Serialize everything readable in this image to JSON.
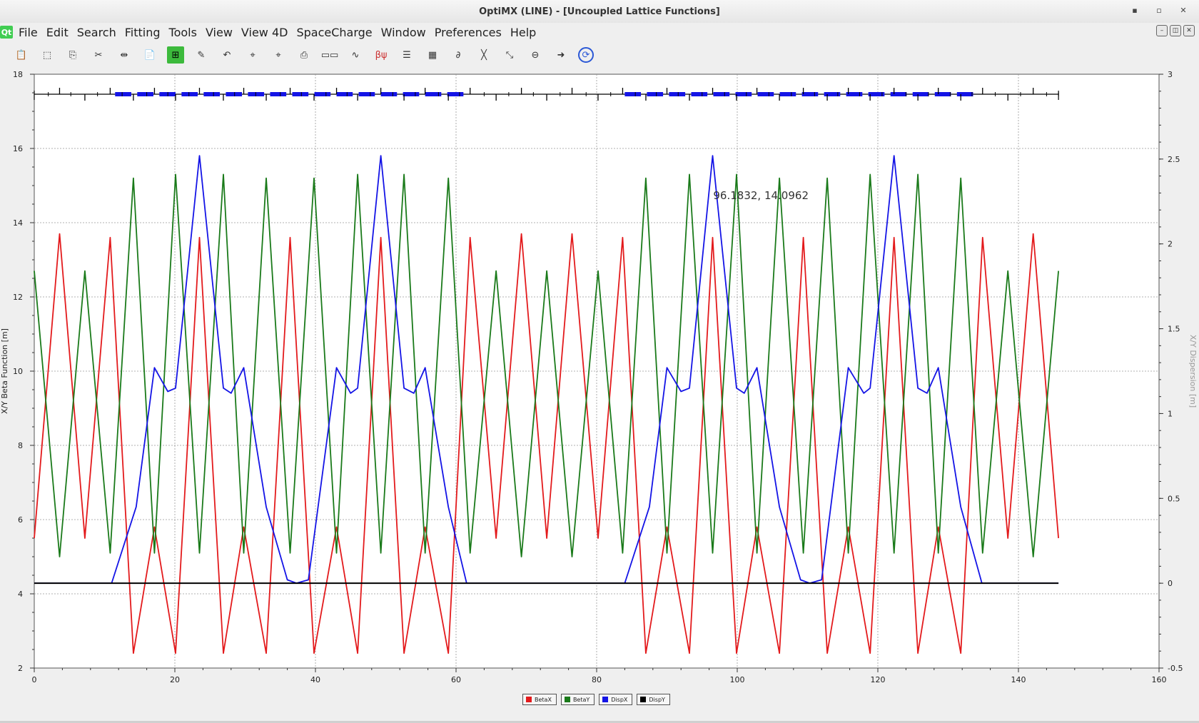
{
  "window": {
    "title": "OptiMX (LINE) - [Uncoupled Lattice Functions]",
    "min_label": "▪",
    "max_label": "▫",
    "close_label": "✕"
  },
  "menubar": {
    "logo": "Qt",
    "items": [
      "File",
      "Edit",
      "Search",
      "Fitting",
      "Tools",
      "View",
      "View 4D",
      "SpaceCharge",
      "Window",
      "Preferences",
      "Help"
    ]
  },
  "toolbar": {
    "buttons": [
      {
        "name": "open-lattice-icon",
        "glyph": "📋"
      },
      {
        "name": "selection-icon",
        "glyph": "⬚"
      },
      {
        "name": "copy-icon",
        "glyph": "⎘"
      },
      {
        "name": "cut-icon",
        "glyph": "✂"
      },
      {
        "name": "align-icon",
        "glyph": "⇹"
      },
      {
        "name": "paste-icon",
        "glyph": "📄"
      },
      {
        "name": "fit-icon",
        "glyph": "⊞",
        "style": "green"
      },
      {
        "name": "tracking-icon",
        "glyph": "✎"
      },
      {
        "name": "undo-icon",
        "glyph": "↶"
      },
      {
        "name": "cursor-icon",
        "glyph": "⌖"
      },
      {
        "name": "cursor-dot-icon",
        "glyph": "⌖"
      },
      {
        "name": "print-icon",
        "glyph": "⎙"
      },
      {
        "name": "lattice-view-icon",
        "glyph": "▭▭"
      },
      {
        "name": "beta-plot-icon",
        "glyph": "∿"
      },
      {
        "name": "beta-phase-icon",
        "glyph": "βψ",
        "style": "red"
      },
      {
        "name": "table-icon",
        "glyph": "☰"
      },
      {
        "name": "grid-icon",
        "glyph": "▦"
      },
      {
        "name": "derivative-icon",
        "glyph": "∂"
      },
      {
        "name": "ellipse-icon",
        "glyph": "╳"
      },
      {
        "name": "zoom-icon",
        "glyph": "⤡"
      },
      {
        "name": "stop-icon",
        "glyph": "⊖"
      },
      {
        "name": "forward-icon",
        "glyph": "➜"
      },
      {
        "name": "refresh-icon",
        "glyph": "⟳",
        "style": "blue-circle"
      }
    ]
  },
  "cursor_readout": "96.1832, 14.0962",
  "legend": [
    {
      "label": "BetaX",
      "color": "#e31a1c"
    },
    {
      "label": "BetaY",
      "color": "#1a7a1a"
    },
    {
      "label": "DispX",
      "color": "#1414e6"
    },
    {
      "label": "DispY",
      "color": "#000000"
    }
  ],
  "chart_data": {
    "type": "line",
    "title": "",
    "xlabel": "",
    "ylabel": "X/Y Beta Function [m]",
    "y2label": "X/Y Dispersion [m]",
    "xlim": [
      0,
      160
    ],
    "ylim": [
      2,
      18
    ],
    "y2lim": [
      -0.5,
      3
    ],
    "xticks": [
      "0",
      "20",
      "40",
      "60",
      "80",
      "100",
      "120",
      "140",
      "160"
    ],
    "yticks": [
      "2",
      "4",
      "6",
      "8",
      "10",
      "12",
      "14",
      "16",
      "18"
    ],
    "y2ticks": [
      "-0.5",
      "0",
      "0.5",
      "1",
      "1.5",
      "2",
      "2.5",
      "3"
    ],
    "grid": true,
    "legend_position": "bottom",
    "lattice_length": 145.7,
    "series": [
      {
        "name": "BetaX",
        "axis": "left",
        "x": [
          0,
          3.6,
          7.2,
          10.8,
          14.1,
          17.1,
          20.1,
          23.5,
          26.9,
          29.8,
          33.0,
          36.4,
          39.8,
          43.0,
          46.0,
          49.3,
          52.6,
          55.6,
          58.9,
          62.0,
          65.7,
          69.3,
          72.9,
          76.5,
          80.2,
          83.7,
          87.0,
          90.0,
          93.2,
          96.5,
          99.9,
          102.8,
          106.0,
          109.4,
          112.8,
          115.8,
          118.9,
          122.3,
          125.7,
          128.6,
          131.8,
          134.9,
          138.5,
          142.1,
          145.7
        ],
        "y": [
          5.5,
          13.7,
          5.5,
          13.6,
          2.4,
          5.8,
          2.4,
          13.6,
          2.4,
          5.8,
          2.4,
          13.6,
          2.4,
          5.8,
          2.4,
          13.6,
          2.4,
          5.8,
          2.4,
          13.6,
          5.5,
          13.7,
          5.5,
          13.7,
          5.5,
          13.6,
          2.4,
          5.8,
          2.4,
          13.6,
          2.4,
          5.8,
          2.4,
          13.6,
          2.4,
          5.8,
          2.4,
          13.6,
          2.4,
          5.8,
          2.4,
          13.6,
          5.5,
          13.7,
          5.5
        ]
      },
      {
        "name": "BetaY",
        "axis": "left",
        "x": [
          0,
          3.6,
          7.2,
          10.8,
          14.1,
          17.1,
          20.1,
          23.5,
          26.9,
          29.8,
          33.0,
          36.4,
          39.8,
          43.0,
          46.0,
          49.3,
          52.6,
          55.6,
          58.9,
          62.0,
          65.7,
          69.3,
          72.9,
          76.5,
          80.2,
          83.7,
          87.0,
          90.0,
          93.2,
          96.5,
          99.9,
          102.8,
          106.0,
          109.4,
          112.8,
          115.8,
          118.9,
          122.3,
          125.7,
          128.6,
          131.8,
          134.9,
          138.5,
          142.1,
          145.7
        ],
        "y": [
          12.7,
          5.0,
          12.7,
          5.1,
          15.2,
          5.1,
          15.3,
          5.1,
          15.3,
          5.1,
          15.2,
          5.1,
          15.2,
          5.1,
          15.3,
          5.1,
          15.3,
          5.1,
          15.2,
          5.1,
          12.7,
          5.0,
          12.7,
          5.0,
          12.7,
          5.1,
          15.2,
          5.1,
          15.3,
          5.1,
          15.3,
          5.1,
          15.2,
          5.1,
          15.2,
          5.1,
          15.3,
          5.1,
          15.3,
          5.1,
          15.2,
          5.1,
          12.7,
          5.0,
          12.7
        ]
      },
      {
        "name": "DispX",
        "axis": "right",
        "x": [
          0,
          11.0,
          14.5,
          17.1,
          19.0,
          20.1,
          23.5,
          26.9,
          28.0,
          29.8,
          33.0,
          36.0,
          37.3,
          39.0,
          43.0,
          45.0,
          46.0,
          49.3,
          52.6,
          54.0,
          55.6,
          58.9,
          61.5,
          62.0,
          73.0,
          84.0,
          87.5,
          90.0,
          92.0,
          93.2,
          96.5,
          99.9,
          101.0,
          102.8,
          106.0,
          109.0,
          110.3,
          112.0,
          115.8,
          118.0,
          118.9,
          122.3,
          125.7,
          127.0,
          128.6,
          131.8,
          134.8,
          145.7
        ],
        "y": [
          0,
          0,
          0.45,
          1.27,
          1.13,
          1.15,
          2.52,
          1.15,
          1.12,
          1.27,
          0.45,
          0.02,
          0,
          0.02,
          1.27,
          1.12,
          1.15,
          2.52,
          1.15,
          1.12,
          1.27,
          0.45,
          0,
          0,
          0,
          0,
          0.45,
          1.27,
          1.13,
          1.15,
          2.52,
          1.15,
          1.12,
          1.27,
          0.45,
          0.02,
          0,
          0.02,
          1.27,
          1.12,
          1.15,
          2.52,
          1.15,
          1.12,
          1.27,
          0.45,
          0,
          0
        ]
      },
      {
        "name": "DispY",
        "axis": "right",
        "x": [
          0,
          145.7
        ],
        "y": [
          0,
          0
        ]
      }
    ],
    "lattice_markers": {
      "dipole_ranges": [
        [
          11.5,
          61.5
        ],
        [
          84.0,
          134.2
        ]
      ],
      "up_ticks": [
        3.6,
        10.8,
        17.1,
        23.5,
        29.8,
        36.4,
        43.0,
        49.3,
        55.6,
        62.0,
        69.3,
        76.5,
        83.7,
        90.0,
        96.5,
        102.8,
        109.4,
        115.8,
        122.3,
        128.6,
        134.9,
        142.1
      ],
      "down_ticks": [
        7.2,
        14.1,
        20.1,
        26.9,
        33.0,
        39.8,
        46.0,
        52.6,
        58.9,
        65.7,
        72.9,
        80.2,
        87.0,
        93.2,
        99.9,
        106.0,
        112.8,
        118.9,
        125.7,
        131.8,
        138.5
      ],
      "small_ticks": [
        0,
        2.0,
        5.2,
        9.0,
        12.5,
        16.0,
        19.0,
        22.0,
        25.5,
        28.5,
        31.5,
        35.0,
        38.0,
        41.5,
        44.5,
        47.8,
        51.0,
        54.2,
        57.5,
        60.5,
        64.0,
        67.5,
        71.0,
        74.8,
        78.5,
        82.0,
        85.5,
        88.5,
        91.6,
        95.0,
        98.2,
        101.3,
        104.5,
        107.7,
        111.0,
        114.3,
        117.4,
        120.6,
        124.0,
        127.2,
        130.3,
        133.4,
        136.7,
        140.3,
        144.0,
        145.7
      ]
    }
  }
}
